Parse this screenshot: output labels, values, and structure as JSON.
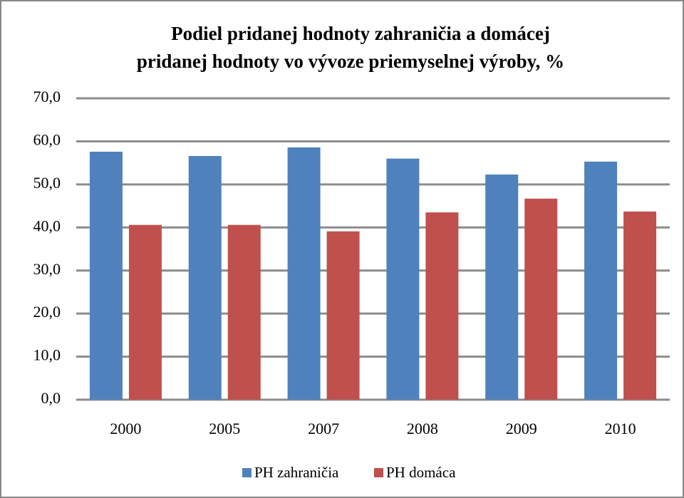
{
  "chart_data": {
    "type": "bar",
    "title": [
      "Podiel pridanej hodnoty zahraničia a domácej",
      "pridanej hodnoty vo vývoze priemyselnej  výroby, %"
    ],
    "categories": [
      "2000",
      "2005",
      "2007",
      "2008",
      "2009",
      "2010"
    ],
    "series": [
      {
        "name": "PH zahraničia",
        "color": "#4f81bd",
        "values": [
          57.6,
          56.6,
          58.6,
          56.0,
          52.3,
          55.3
        ]
      },
      {
        "name": "PH domáca",
        "color": "#c0504d",
        "values": [
          40.6,
          40.6,
          39.1,
          43.5,
          46.7,
          43.7
        ]
      }
    ],
    "ylim": [
      0,
      70
    ],
    "yticks": [
      {
        "value": 0,
        "label": "0,0"
      },
      {
        "value": 10,
        "label": "10,0"
      },
      {
        "value": 20,
        "label": "20,0"
      },
      {
        "value": 30,
        "label": "30,0"
      },
      {
        "value": 40,
        "label": "40,0"
      },
      {
        "value": 50,
        "label": "50,0"
      },
      {
        "value": 60,
        "label": "60,0"
      },
      {
        "value": 70,
        "label": "70,0"
      }
    ],
    "grid": true,
    "legend": "bottom"
  }
}
